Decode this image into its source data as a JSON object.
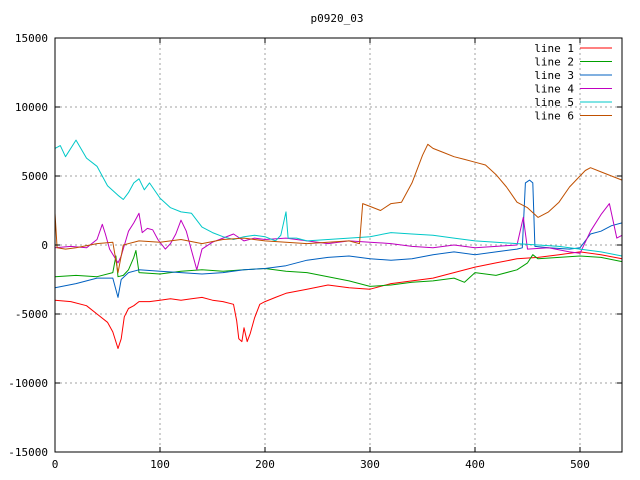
{
  "chart_data": {
    "type": "line",
    "title": "p0920_03",
    "xlim": [
      0,
      540
    ],
    "ylim": [
      -15000,
      15000
    ],
    "grid": true,
    "legend_position": "top-right",
    "x_ticks": [
      "0",
      "100",
      "200",
      "300",
      "400",
      "500"
    ],
    "y_ticks": [
      "15000",
      "10000",
      "5000",
      "0",
      "-5000",
      "-10000",
      "-15000"
    ],
    "series": [
      {
        "name": "line 1",
        "color": "#ff0000",
        "points": [
          [
            0,
            -4000
          ],
          [
            15,
            -4100
          ],
          [
            30,
            -4400
          ],
          [
            40,
            -5000
          ],
          [
            50,
            -5600
          ],
          [
            55,
            -6300
          ],
          [
            60,
            -7500
          ],
          [
            63,
            -6800
          ],
          [
            66,
            -5200
          ],
          [
            70,
            -4600
          ],
          [
            75,
            -4400
          ],
          [
            80,
            -4100
          ],
          [
            90,
            -4100
          ],
          [
            100,
            -4000
          ],
          [
            110,
            -3900
          ],
          [
            120,
            -4000
          ],
          [
            130,
            -3900
          ],
          [
            140,
            -3800
          ],
          [
            150,
            -4000
          ],
          [
            160,
            -4100
          ],
          [
            170,
            -4300
          ],
          [
            173,
            -5500
          ],
          [
            175,
            -6800
          ],
          [
            178,
            -7000
          ],
          [
            180,
            -6000
          ],
          [
            183,
            -7000
          ],
          [
            186,
            -6400
          ],
          [
            190,
            -5300
          ],
          [
            195,
            -4300
          ],
          [
            200,
            -4100
          ],
          [
            210,
            -3800
          ],
          [
            220,
            -3500
          ],
          [
            240,
            -3200
          ],
          [
            260,
            -2900
          ],
          [
            280,
            -3100
          ],
          [
            300,
            -3200
          ],
          [
            320,
            -2800
          ],
          [
            340,
            -2600
          ],
          [
            360,
            -2400
          ],
          [
            380,
            -2000
          ],
          [
            400,
            -1600
          ],
          [
            420,
            -1300
          ],
          [
            440,
            -1000
          ],
          [
            460,
            -900
          ],
          [
            480,
            -700
          ],
          [
            500,
            -500
          ],
          [
            520,
            -700
          ],
          [
            540,
            -1000
          ]
        ]
      },
      {
        "name": "line 2",
        "color": "#00a000",
        "points": [
          [
            0,
            -2300
          ],
          [
            20,
            -2200
          ],
          [
            40,
            -2300
          ],
          [
            55,
            -2000
          ],
          [
            58,
            -800
          ],
          [
            60,
            -2300
          ],
          [
            65,
            -2200
          ],
          [
            70,
            -1800
          ],
          [
            75,
            -900
          ],
          [
            77,
            -400
          ],
          [
            80,
            -2000
          ],
          [
            100,
            -2100
          ],
          [
            120,
            -1900
          ],
          [
            140,
            -1800
          ],
          [
            160,
            -1900
          ],
          [
            180,
            -1800
          ],
          [
            200,
            -1700
          ],
          [
            220,
            -1900
          ],
          [
            240,
            -2000
          ],
          [
            260,
            -2300
          ],
          [
            280,
            -2600
          ],
          [
            300,
            -3000
          ],
          [
            320,
            -2900
          ],
          [
            340,
            -2700
          ],
          [
            360,
            -2600
          ],
          [
            380,
            -2400
          ],
          [
            390,
            -2700
          ],
          [
            400,
            -2000
          ],
          [
            420,
            -2200
          ],
          [
            440,
            -1800
          ],
          [
            450,
            -1300
          ],
          [
            455,
            -700
          ],
          [
            460,
            -1000
          ],
          [
            480,
            -900
          ],
          [
            500,
            -800
          ],
          [
            520,
            -900
          ],
          [
            540,
            -1200
          ]
        ]
      },
      {
        "name": "line 3",
        "color": "#0060c0",
        "points": [
          [
            0,
            -3100
          ],
          [
            20,
            -2800
          ],
          [
            40,
            -2400
          ],
          [
            55,
            -2400
          ],
          [
            60,
            -3800
          ],
          [
            63,
            -2500
          ],
          [
            70,
            -2000
          ],
          [
            80,
            -1800
          ],
          [
            100,
            -1900
          ],
          [
            120,
            -2000
          ],
          [
            140,
            -2100
          ],
          [
            160,
            -2000
          ],
          [
            180,
            -1800
          ],
          [
            200,
            -1700
          ],
          [
            220,
            -1500
          ],
          [
            240,
            -1100
          ],
          [
            260,
            -900
          ],
          [
            280,
            -800
          ],
          [
            300,
            -1000
          ],
          [
            320,
            -1100
          ],
          [
            340,
            -1000
          ],
          [
            360,
            -700
          ],
          [
            380,
            -500
          ],
          [
            400,
            -700
          ],
          [
            420,
            -500
          ],
          [
            440,
            -300
          ],
          [
            445,
            -200
          ],
          [
            448,
            4500
          ],
          [
            452,
            4700
          ],
          [
            455,
            4500
          ],
          [
            457,
            -100
          ],
          [
            470,
            -200
          ],
          [
            490,
            -300
          ],
          [
            500,
            -200
          ],
          [
            510,
            800
          ],
          [
            520,
            1000
          ],
          [
            530,
            1400
          ],
          [
            540,
            1600
          ]
        ]
      },
      {
        "name": "line 4",
        "color": "#c000c0",
        "points": [
          [
            0,
            -200
          ],
          [
            15,
            -100
          ],
          [
            30,
            -200
          ],
          [
            40,
            400
          ],
          [
            45,
            1500
          ],
          [
            48,
            800
          ],
          [
            52,
            -300
          ],
          [
            60,
            -1300
          ],
          [
            63,
            -800
          ],
          [
            70,
            1000
          ],
          [
            75,
            1600
          ],
          [
            80,
            2300
          ],
          [
            83,
            900
          ],
          [
            88,
            1200
          ],
          [
            93,
            1100
          ],
          [
            98,
            400
          ],
          [
            105,
            -300
          ],
          [
            110,
            100
          ],
          [
            115,
            800
          ],
          [
            120,
            1800
          ],
          [
            125,
            1000
          ],
          [
            130,
            -400
          ],
          [
            135,
            -1800
          ],
          [
            140,
            -300
          ],
          [
            150,
            200
          ],
          [
            160,
            500
          ],
          [
            170,
            800
          ],
          [
            180,
            300
          ],
          [
            190,
            500
          ],
          [
            200,
            400
          ],
          [
            220,
            500
          ],
          [
            240,
            300
          ],
          [
            260,
            100
          ],
          [
            280,
            300
          ],
          [
            300,
            200
          ],
          [
            320,
            100
          ],
          [
            340,
            -100
          ],
          [
            360,
            -200
          ],
          [
            380,
            0
          ],
          [
            400,
            -200
          ],
          [
            420,
            -100
          ],
          [
            440,
            0
          ],
          [
            446,
            2000
          ],
          [
            450,
            -300
          ],
          [
            470,
            -200
          ],
          [
            490,
            -500
          ],
          [
            500,
            -600
          ],
          [
            510,
            1000
          ],
          [
            520,
            2200
          ],
          [
            528,
            3000
          ],
          [
            535,
            500
          ],
          [
            540,
            700
          ]
        ]
      },
      {
        "name": "line 5",
        "color": "#00c8c8",
        "points": [
          [
            0,
            7000
          ],
          [
            5,
            7200
          ],
          [
            10,
            6400
          ],
          [
            20,
            7600
          ],
          [
            30,
            6300
          ],
          [
            40,
            5700
          ],
          [
            50,
            4300
          ],
          [
            60,
            3600
          ],
          [
            65,
            3300
          ],
          [
            70,
            3800
          ],
          [
            75,
            4500
          ],
          [
            80,
            4800
          ],
          [
            85,
            4000
          ],
          [
            90,
            4500
          ],
          [
            100,
            3400
          ],
          [
            110,
            2700
          ],
          [
            120,
            2400
          ],
          [
            130,
            2300
          ],
          [
            140,
            1300
          ],
          [
            150,
            900
          ],
          [
            160,
            600
          ],
          [
            170,
            400
          ],
          [
            180,
            600
          ],
          [
            190,
            700
          ],
          [
            200,
            600
          ],
          [
            210,
            300
          ],
          [
            215,
            700
          ],
          [
            220,
            2400
          ],
          [
            222,
            500
          ],
          [
            230,
            500
          ],
          [
            240,
            300
          ],
          [
            260,
            400
          ],
          [
            280,
            500
          ],
          [
            300,
            600
          ],
          [
            320,
            900
          ],
          [
            340,
            800
          ],
          [
            360,
            700
          ],
          [
            380,
            500
          ],
          [
            400,
            300
          ],
          [
            420,
            200
          ],
          [
            440,
            100
          ],
          [
            460,
            0
          ],
          [
            480,
            -100
          ],
          [
            500,
            -300
          ],
          [
            520,
            -500
          ],
          [
            540,
            -800
          ]
        ]
      },
      {
        "name": "line 6",
        "color": "#c05000",
        "points": [
          [
            0,
            2300
          ],
          [
            2,
            -200
          ],
          [
            10,
            -300
          ],
          [
            20,
            -200
          ],
          [
            40,
            100
          ],
          [
            55,
            200
          ],
          [
            60,
            -2000
          ],
          [
            65,
            0
          ],
          [
            80,
            300
          ],
          [
            100,
            200
          ],
          [
            120,
            400
          ],
          [
            140,
            100
          ],
          [
            160,
            400
          ],
          [
            180,
            500
          ],
          [
            200,
            300
          ],
          [
            220,
            200
          ],
          [
            240,
            100
          ],
          [
            260,
            200
          ],
          [
            280,
            300
          ],
          [
            290,
            100
          ],
          [
            293,
            3000
          ],
          [
            300,
            2800
          ],
          [
            310,
            2500
          ],
          [
            320,
            3000
          ],
          [
            330,
            3100
          ],
          [
            340,
            4500
          ],
          [
            350,
            6500
          ],
          [
            355,
            7300
          ],
          [
            360,
            7000
          ],
          [
            370,
            6700
          ],
          [
            380,
            6400
          ],
          [
            390,
            6200
          ],
          [
            400,
            6000
          ],
          [
            410,
            5800
          ],
          [
            420,
            5100
          ],
          [
            430,
            4200
          ],
          [
            440,
            3100
          ],
          [
            450,
            2700
          ],
          [
            460,
            2000
          ],
          [
            470,
            2400
          ],
          [
            480,
            3100
          ],
          [
            490,
            4200
          ],
          [
            500,
            5000
          ],
          [
            505,
            5400
          ],
          [
            510,
            5600
          ],
          [
            520,
            5300
          ],
          [
            530,
            5000
          ],
          [
            540,
            4700
          ]
        ]
      }
    ]
  }
}
